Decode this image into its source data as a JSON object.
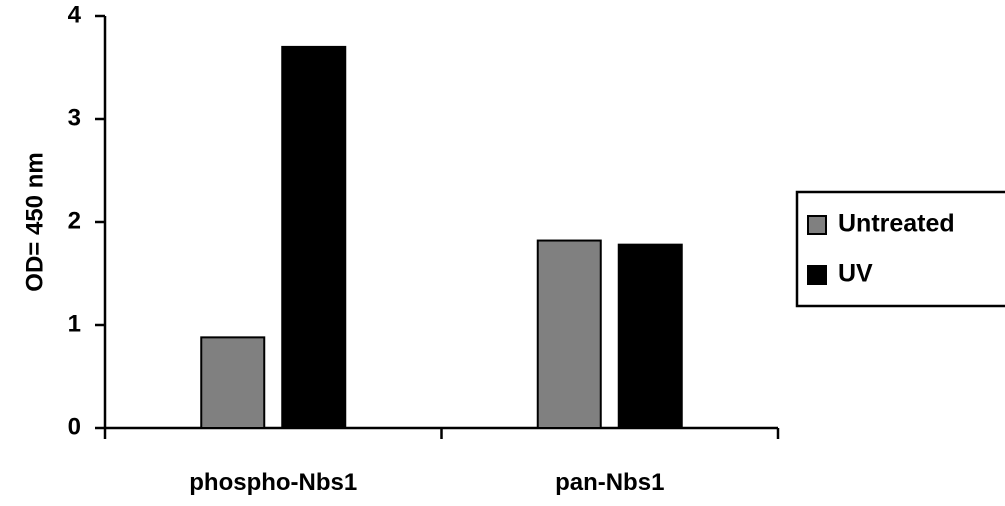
{
  "chart_data": {
    "type": "bar",
    "title": "",
    "xlabel": "",
    "ylabel": "OD= 450 nm",
    "categories": [
      "phospho-Nbs1",
      "pan-Nbs1"
    ],
    "series": [
      {
        "name": "Untreated",
        "color": "#808080",
        "values": [
          0.88,
          1.82
        ]
      },
      {
        "name": "UV",
        "color": "#000000",
        "values": [
          3.7,
          1.78
        ]
      }
    ],
    "ylim": [
      0,
      4
    ],
    "yticks": [
      "0",
      "1",
      "2",
      "3",
      "4"
    ],
    "grid": false,
    "legend": "right"
  }
}
